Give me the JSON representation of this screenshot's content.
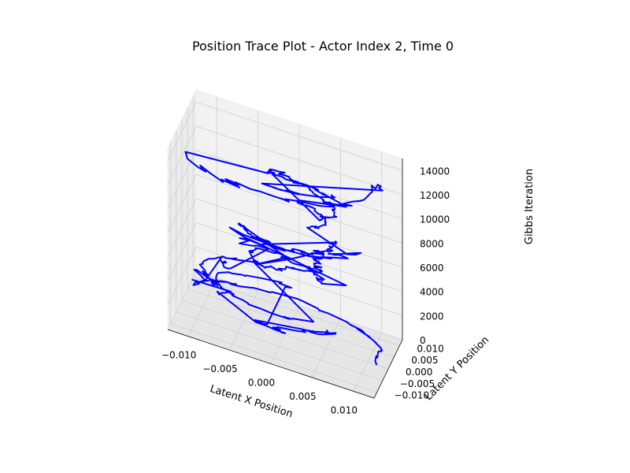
{
  "chart_data": {
    "type": "line",
    "projection": "3d",
    "title": "Position Trace Plot - Actor Index 2, Time 0",
    "xlabel": "Latent X Position",
    "ylabel": "Latent Y Position",
    "zlabel": "Gibbs Iteration",
    "xlim": [
      -0.0125,
      0.0125
    ],
    "ylim": [
      -0.0125,
      0.0125
    ],
    "zlim": [
      0,
      15000
    ],
    "x_ticks": [
      "−0.010",
      "−0.005",
      "0.000",
      "0.005",
      "0.010"
    ],
    "y_ticks": [
      "−0.010",
      "−0.005",
      "0.000",
      "0.005",
      "0.010"
    ],
    "z_ticks": [
      "0",
      "2000",
      "4000",
      "6000",
      "8000",
      "10000",
      "12000",
      "14000"
    ],
    "grid": true,
    "series": [
      {
        "color": "#0000ff",
        "iterations": 15000,
        "description_points": "Gibbs sampler trace of latent position; dense looping curves filling the cylinder between roughly -0.012 and 0.012 in x and y"
      }
    ]
  }
}
